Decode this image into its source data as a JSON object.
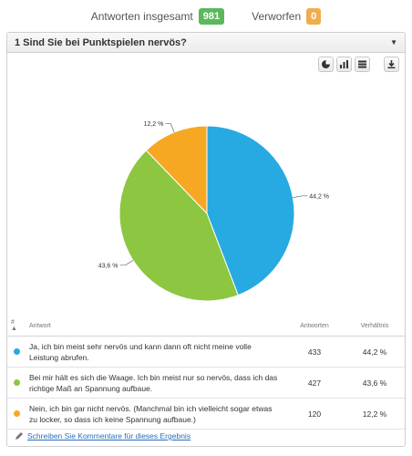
{
  "summary": {
    "total_label": "Antworten insgesamt",
    "total_value": "981",
    "rejected_label": "Verworfen",
    "rejected_value": "0"
  },
  "question": {
    "title": "1 Sind Sie bei Punktspielen nervös?"
  },
  "toolbar": {
    "icons": [
      "pie-chart-icon",
      "bar-chart-icon",
      "list-icon",
      "download-icon"
    ]
  },
  "colors": {
    "blue": "#27a9e1",
    "green": "#8dc641",
    "orange": "#f7a823"
  },
  "chart_data": {
    "type": "pie",
    "slices": [
      {
        "label": "44,2 %",
        "value": 44.2,
        "color": "#27a9e1"
      },
      {
        "label": "43,6 %",
        "value": 43.6,
        "color": "#8dc641"
      },
      {
        "label": "12,2 %",
        "value": 12.2,
        "color": "#f7a823"
      }
    ]
  },
  "table": {
    "headers": {
      "num": "#",
      "answer": "Antwort",
      "count": "Antworten",
      "ratio": "Verhältnis"
    },
    "rows": [
      {
        "color": "#27a9e1",
        "answer": "Ja, ich bin meist sehr nervös und kann dann oft nicht meine volle Leistung abrufen.",
        "count": "433",
        "ratio": "44,2 %"
      },
      {
        "color": "#8dc641",
        "answer": "Bei mir hält es sich die Waage. Ich bin meist nur so nervös, dass ich das richtige Maß an Spannung aufbaue.",
        "count": "427",
        "ratio": "43,6 %"
      },
      {
        "color": "#f7a823",
        "answer": "Nein, ich bin gar nicht nervös. (Manchmal bin ich vielleicht sogar etwas zu locker, so dass ich keine Spannung aufbaue.)",
        "count": "120",
        "ratio": "12,2 %"
      }
    ]
  },
  "comment_link": "Schreiben Sie Kommentare für dieses Ergebnis"
}
